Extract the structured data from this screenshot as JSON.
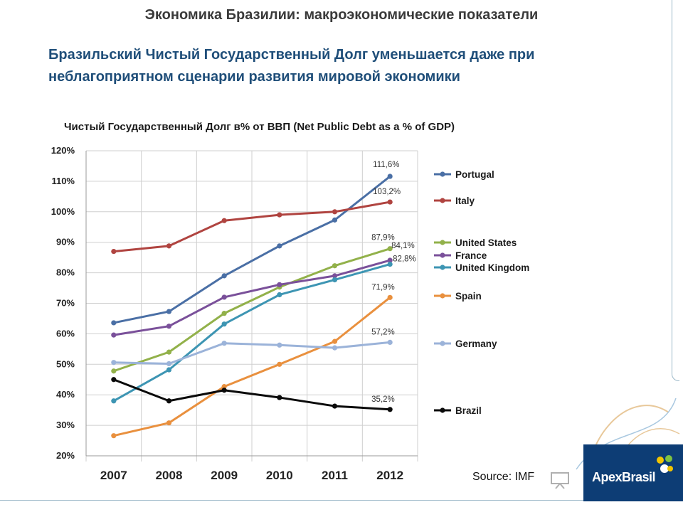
{
  "slide": {
    "title": "Экономика Бразилии: макроэкономические показатели",
    "subtitle_line1": "Бразильский Чистый Государственный Долг уменьшается даже при",
    "subtitle_line2": "неблагоприятном сценарии развития мировой экономики",
    "source": "Source: IMF",
    "logo_text": "ApexBrasil"
  },
  "colors": {
    "title": "#3a3a3a",
    "subtitle": "#1f4e79",
    "logo_bg": "#0d3d75",
    "grid": "#cfcfcf"
  },
  "chart_data": {
    "type": "line",
    "title": "Чистый Государственный Долг в% от ВВП (Net Public Debt as a % of GDP)",
    "xlabel": "",
    "ylabel": "",
    "categories": [
      "2007",
      "2008",
      "2009",
      "2010",
      "2011",
      "2012"
    ],
    "ylim": [
      20,
      120
    ],
    "yticks": [
      "20%",
      "30%",
      "40%",
      "50%",
      "60%",
      "70%",
      "80%",
      "90%",
      "100%",
      "110%",
      "120%"
    ],
    "grid": true,
    "legend_position": "right",
    "series": [
      {
        "name": "Portugal",
        "color": "#4a6fa5",
        "values": [
          63.6,
          67.3,
          79.0,
          88.8,
          97.3,
          111.6
        ],
        "end_label": "111,6%"
      },
      {
        "name": "Italy",
        "color": "#b04440",
        "values": [
          87.0,
          88.8,
          97.1,
          99.0,
          100.0,
          103.2
        ],
        "end_label": "103,2%"
      },
      {
        "name": "United States",
        "color": "#92b14a",
        "values": [
          47.8,
          54.0,
          66.7,
          75.3,
          82.3,
          87.9
        ],
        "end_label": "87,9%"
      },
      {
        "name": "France",
        "color": "#7a509a",
        "values": [
          59.6,
          62.5,
          72.0,
          76.1,
          79.0,
          84.1
        ],
        "end_label": "84,1%"
      },
      {
        "name": "United Kingdom",
        "color": "#3d95b3",
        "values": [
          38.0,
          48.2,
          63.2,
          72.8,
          77.7,
          82.8
        ],
        "end_label": "82,8%"
      },
      {
        "name": "Spain",
        "color": "#e9903e",
        "values": [
          26.6,
          30.8,
          42.7,
          50.0,
          57.5,
          71.9
        ],
        "end_label": "71,9%"
      },
      {
        "name": "Germany",
        "color": "#9bb3d9",
        "values": [
          50.6,
          50.2,
          56.9,
          56.3,
          55.4,
          57.2
        ],
        "end_label": "57,2%"
      },
      {
        "name": "Brazil",
        "color": "#0a0a0a",
        "values": [
          45.0,
          38.0,
          41.5,
          39.1,
          36.3,
          35.2
        ],
        "end_label": "35,2%"
      }
    ]
  }
}
